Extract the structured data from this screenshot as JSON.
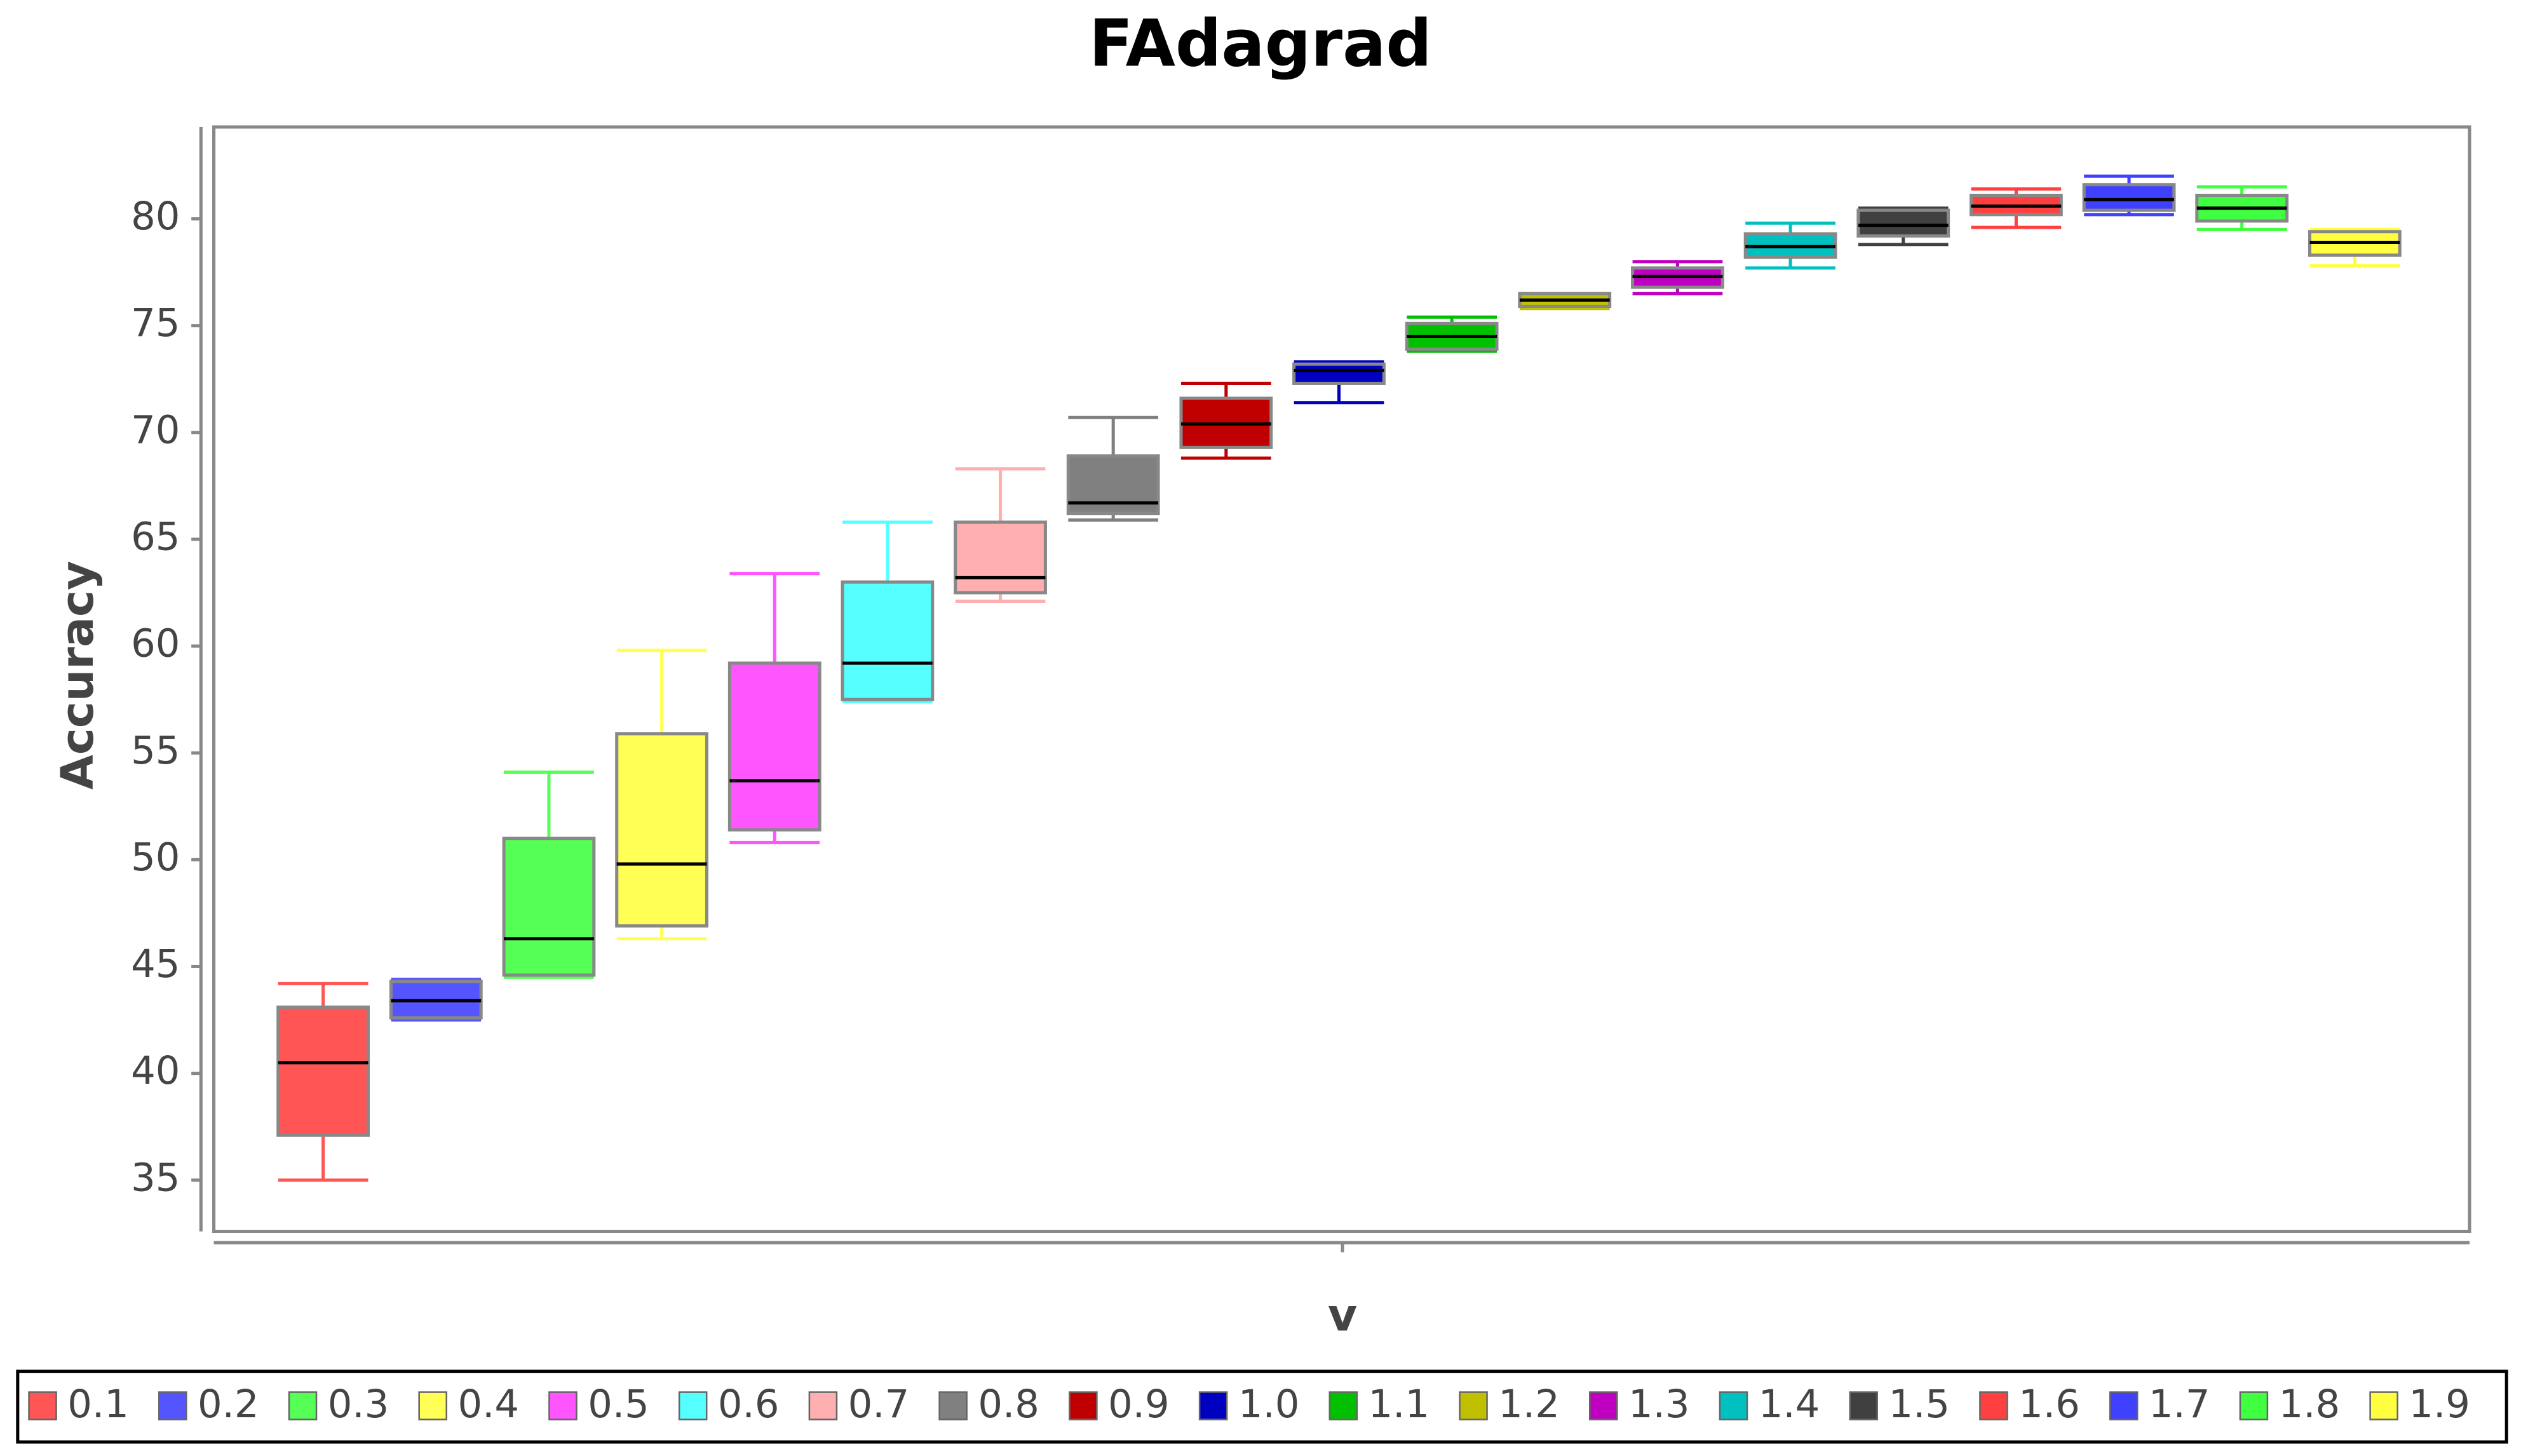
{
  "chart_data": {
    "type": "box",
    "title": "FAdagrad",
    "y_label": "Accuracy",
    "x_label": "v",
    "ylim": [
      32.6,
      84.3
    ],
    "yticks": [
      35,
      40,
      45,
      50,
      55,
      60,
      65,
      70,
      75,
      80
    ],
    "legend": "bottom",
    "series": [
      {
        "name": "0.1",
        "color": "#ff5555",
        "min": 35.0,
        "q1": 37.1,
        "median": 40.5,
        "q3": 43.1,
        "max": 44.2
      },
      {
        "name": "0.2",
        "color": "#5555ff",
        "min": 42.5,
        "q1": 42.6,
        "median": 43.4,
        "q3": 44.3,
        "max": 44.4
      },
      {
        "name": "0.3",
        "color": "#55ff55",
        "min": 44.5,
        "q1": 44.6,
        "median": 46.3,
        "q3": 51.0,
        "max": 54.1
      },
      {
        "name": "0.4",
        "color": "#ffff55",
        "min": 46.3,
        "q1": 46.9,
        "median": 49.8,
        "q3": 55.9,
        "max": 59.8
      },
      {
        "name": "0.5",
        "color": "#ff55ff",
        "min": 50.8,
        "q1": 51.4,
        "median": 53.7,
        "q3": 59.2,
        "max": 63.4
      },
      {
        "name": "0.6",
        "color": "#55ffff",
        "min": 57.4,
        "q1": 57.5,
        "median": 59.2,
        "q3": 63.0,
        "max": 65.8
      },
      {
        "name": "0.7",
        "color": "#ffafaf",
        "min": 62.1,
        "q1": 62.5,
        "median": 63.2,
        "q3": 65.8,
        "max": 68.3
      },
      {
        "name": "0.8",
        "color": "#808080",
        "min": 65.9,
        "q1": 66.2,
        "median": 66.7,
        "q3": 68.9,
        "max": 70.7
      },
      {
        "name": "0.9",
        "color": "#c00000",
        "min": 68.8,
        "q1": 69.3,
        "median": 70.4,
        "q3": 71.6,
        "max": 72.3
      },
      {
        "name": "1.0",
        "color": "#0000c0",
        "min": 71.4,
        "q1": 72.3,
        "median": 72.9,
        "q3": 73.2,
        "max": 73.3
      },
      {
        "name": "1.1",
        "color": "#00c000",
        "min": 73.8,
        "q1": 73.9,
        "median": 74.5,
        "q3": 75.1,
        "max": 75.4
      },
      {
        "name": "1.2",
        "color": "#c0c000",
        "min": 75.8,
        "q1": 75.9,
        "median": 76.2,
        "q3": 76.5,
        "max": 76.5
      },
      {
        "name": "1.3",
        "color": "#c000c0",
        "min": 76.5,
        "q1": 76.8,
        "median": 77.3,
        "q3": 77.7,
        "max": 78.0
      },
      {
        "name": "1.4",
        "color": "#00c0c0",
        "min": 77.7,
        "q1": 78.2,
        "median": 78.7,
        "q3": 79.3,
        "max": 79.8
      },
      {
        "name": "1.5",
        "color": "#404040",
        "min": 78.8,
        "q1": 79.2,
        "median": 79.7,
        "q3": 80.4,
        "max": 80.5
      },
      {
        "name": "1.6",
        "color": "#ff4040",
        "min": 79.6,
        "q1": 80.2,
        "median": 80.6,
        "q3": 81.1,
        "max": 81.4
      },
      {
        "name": "1.7",
        "color": "#4040ff",
        "min": 80.2,
        "q1": 80.4,
        "median": 80.9,
        "q3": 81.6,
        "max": 82.0
      },
      {
        "name": "1.8",
        "color": "#40ff40",
        "min": 79.5,
        "q1": 79.9,
        "median": 80.5,
        "q3": 81.1,
        "max": 81.5
      },
      {
        "name": "1.9",
        "color": "#ffff40",
        "min": 77.8,
        "q1": 78.3,
        "median": 78.9,
        "q3": 79.4,
        "max": 79.5
      }
    ]
  }
}
